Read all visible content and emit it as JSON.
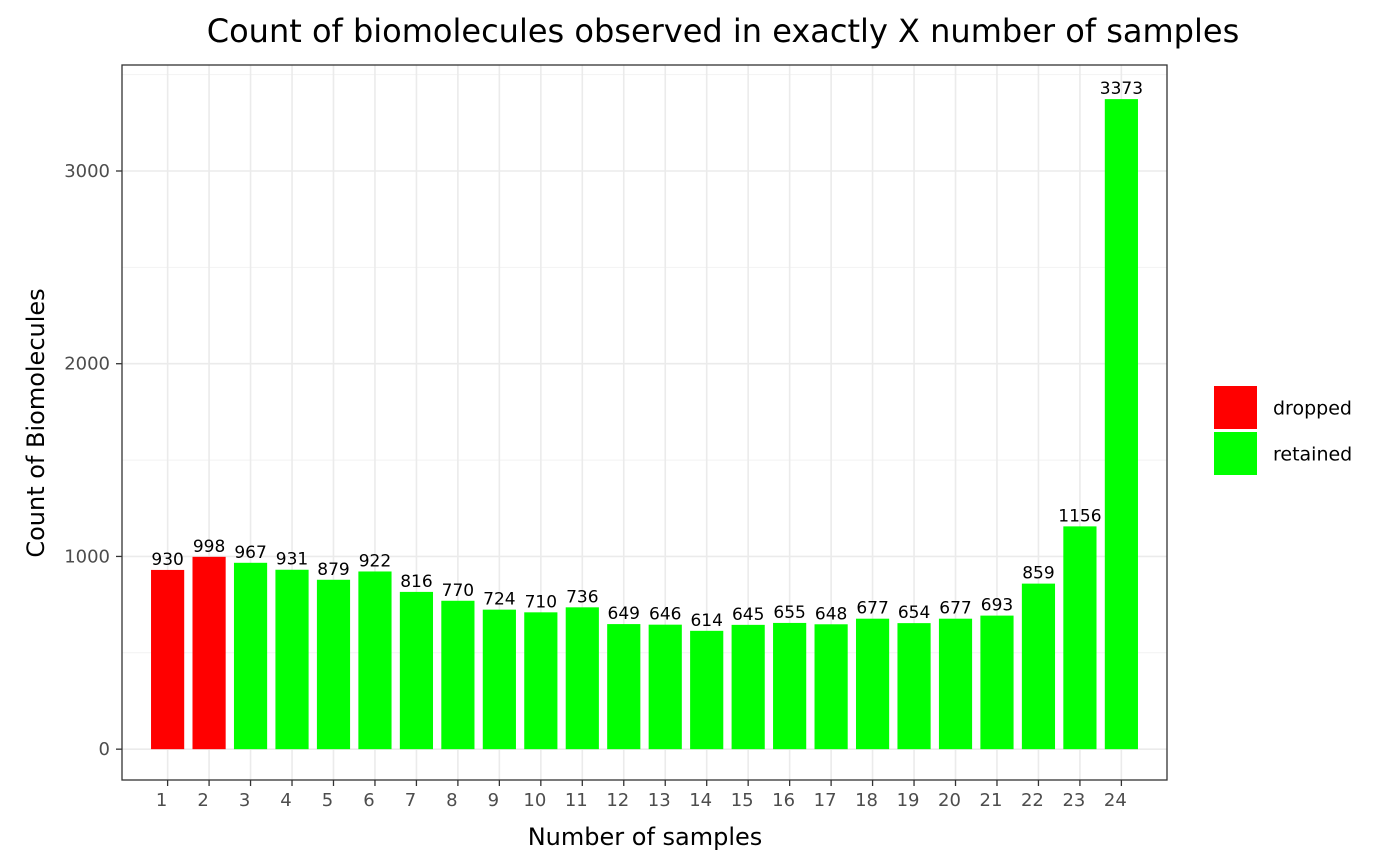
{
  "chart_data": {
    "type": "bar",
    "title": "Count of biomolecules observed in exactly X number of samples",
    "xlabel": "Number of samples",
    "ylabel": "Count of Biomolecules",
    "categories": [
      "1",
      "2",
      "3",
      "4",
      "5",
      "6",
      "7",
      "8",
      "9",
      "10",
      "11",
      "12",
      "13",
      "14",
      "15",
      "16",
      "17",
      "18",
      "19",
      "20",
      "21",
      "22",
      "23",
      "24"
    ],
    "values": [
      930,
      998,
      967,
      931,
      879,
      922,
      816,
      770,
      724,
      710,
      736,
      649,
      646,
      614,
      645,
      655,
      648,
      677,
      654,
      677,
      693,
      859,
      1156,
      3373
    ],
    "groups": [
      "dropped",
      "dropped",
      "retained",
      "retained",
      "retained",
      "retained",
      "retained",
      "retained",
      "retained",
      "retained",
      "retained",
      "retained",
      "retained",
      "retained",
      "retained",
      "retained",
      "retained",
      "retained",
      "retained",
      "retained",
      "retained",
      "retained",
      "retained",
      "retained"
    ],
    "ylim": [
      -160,
      3550
    ],
    "yticks": [
      0,
      1000,
      2000,
      3000
    ],
    "grid": true,
    "legend": {
      "placement": "right",
      "entries": [
        {
          "label": "dropped",
          "color": "#FF0000"
        },
        {
          "label": "retained",
          "color": "#00FF00"
        }
      ]
    },
    "colors": {
      "dropped": "#FF0000",
      "retained": "#00FF00"
    }
  }
}
